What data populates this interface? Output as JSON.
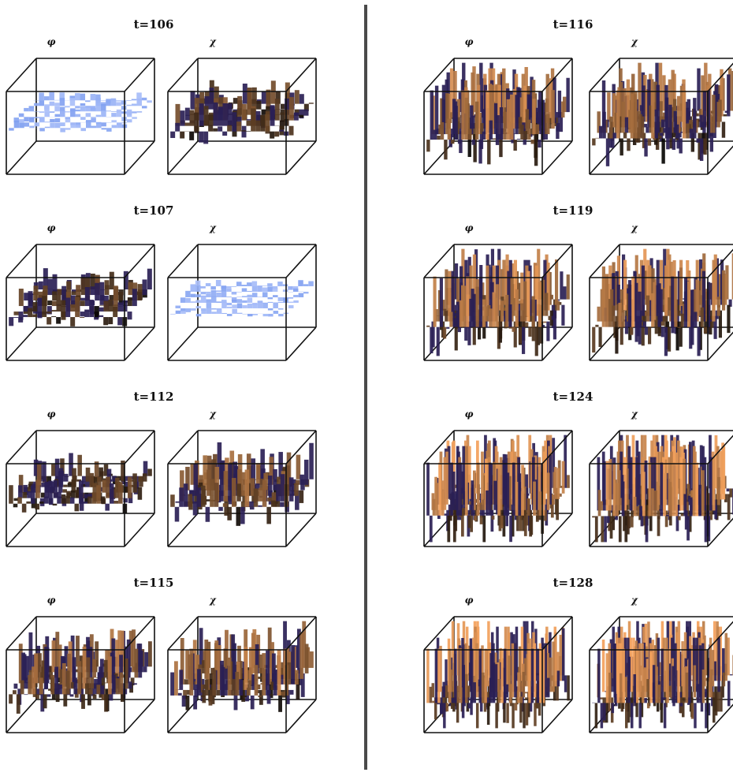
{
  "panels": [
    {
      "time_label": "t=106",
      "fields": [
        {
          "label": "φ",
          "amplitude": 0.08,
          "roughness": 0.2
        },
        {
          "label": "χ",
          "amplitude": 0.22,
          "roughness": 0.25
        }
      ]
    },
    {
      "time_label": "t=107",
      "fields": [
        {
          "label": "φ",
          "amplitude": 0.2,
          "roughness": 0.25
        },
        {
          "label": "χ",
          "amplitude": 0.07,
          "roughness": 0.2
        }
      ]
    },
    {
      "time_label": "t=112",
      "fields": [
        {
          "label": "φ",
          "amplitude": 0.22,
          "roughness": 0.35
        },
        {
          "label": "χ",
          "amplitude": 0.35,
          "roughness": 0.35
        }
      ]
    },
    {
      "time_label": "t=115",
      "fields": [
        {
          "label": "φ",
          "amplitude": 0.4,
          "roughness": 0.5
        },
        {
          "label": "χ",
          "amplitude": 0.45,
          "roughness": 0.5
        }
      ]
    },
    {
      "time_label": "t=116",
      "fields": [
        {
          "label": "φ",
          "amplitude": 0.55,
          "roughness": 0.6
        },
        {
          "label": "χ",
          "amplitude": 0.5,
          "roughness": 0.6
        }
      ]
    },
    {
      "time_label": "t=119",
      "fields": [
        {
          "label": "φ",
          "amplitude": 0.6,
          "roughness": 0.7
        },
        {
          "label": "χ",
          "amplitude": 0.6,
          "roughness": 0.7
        }
      ]
    },
    {
      "time_label": "t=124",
      "fields": [
        {
          "label": "φ",
          "amplitude": 0.7,
          "roughness": 0.85
        },
        {
          "label": "χ",
          "amplitude": 0.72,
          "roughness": 0.85
        }
      ]
    },
    {
      "time_label": "t=128",
      "fields": [
        {
          "label": "φ",
          "amplitude": 0.75,
          "roughness": 0.95
        },
        {
          "label": "χ",
          "amplitude": 0.75,
          "roughness": 0.95
        }
      ]
    }
  ],
  "colors": {
    "low": "#7f9ff0",
    "mid": "#8a5f9e",
    "high": "#f3a15c",
    "dark": "#2a1f55",
    "box": "#111111",
    "divider": "#4a4a4a"
  }
}
